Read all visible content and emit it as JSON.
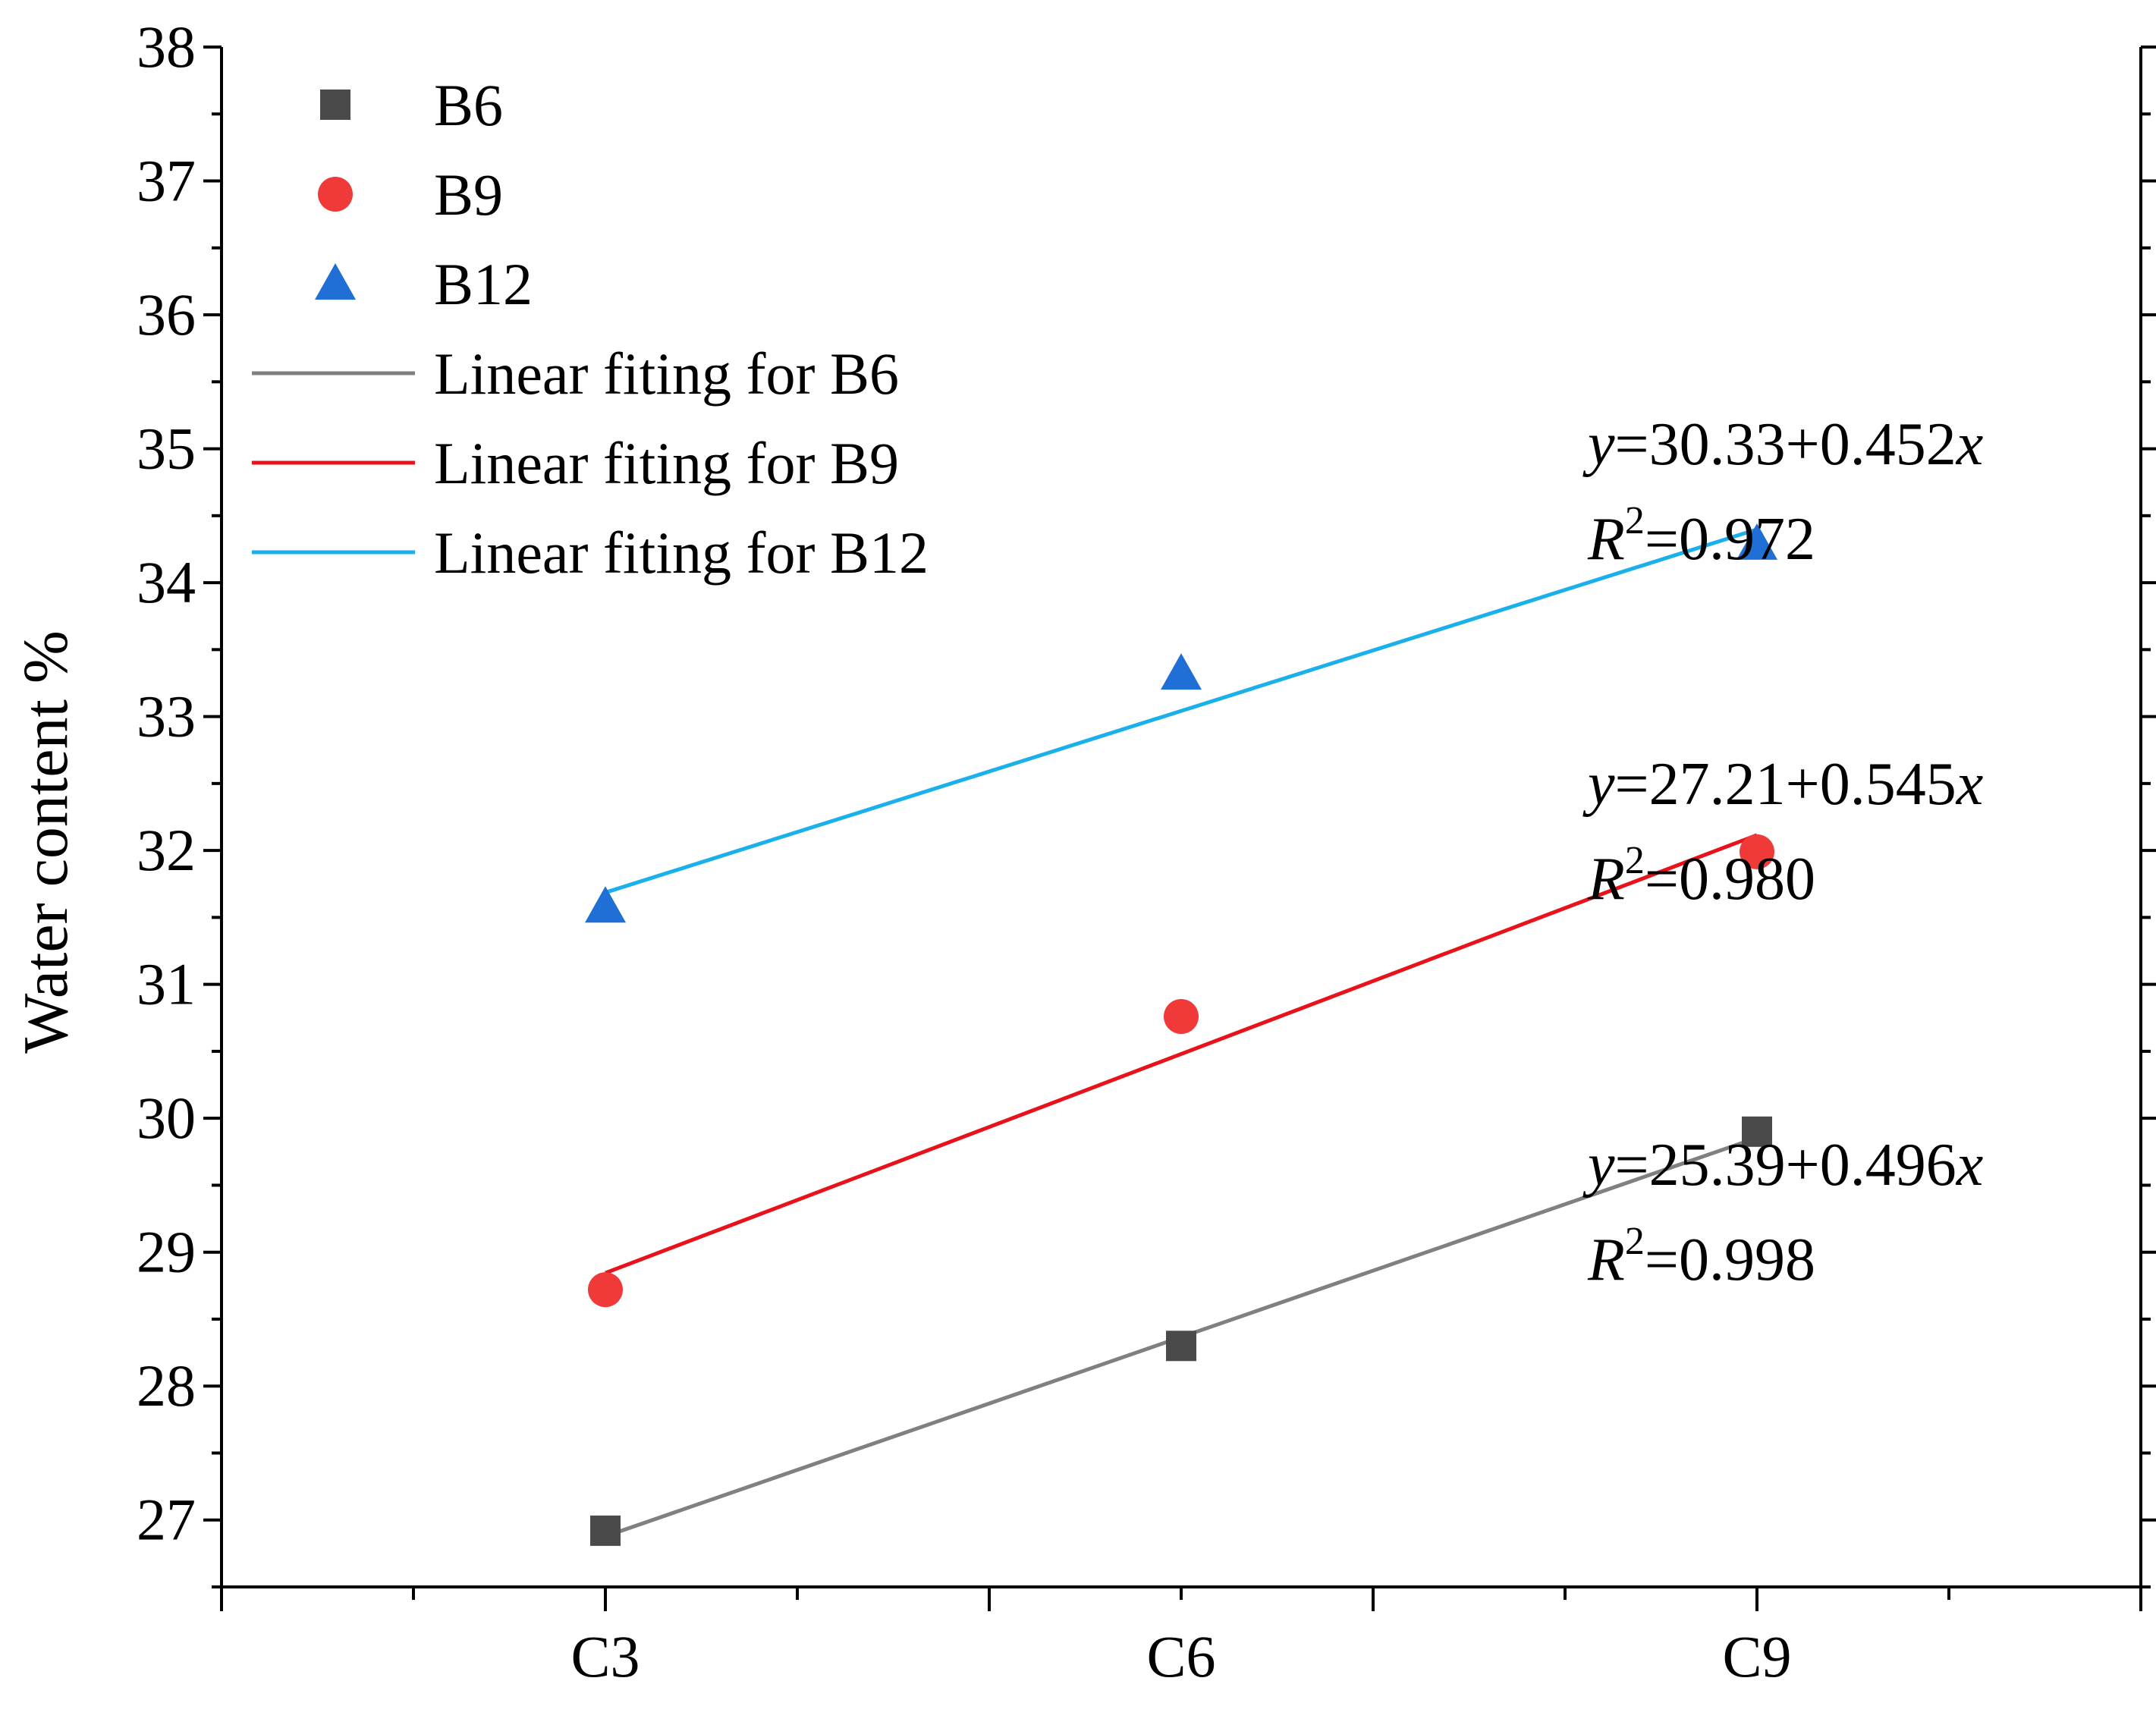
{
  "chart_data": {
    "type": "scatter",
    "title": "",
    "xlabel": "",
    "ylabel": "Water content %",
    "categories": [
      "C3",
      "C6",
      "C9"
    ],
    "xlim": [
      0,
      5
    ],
    "ylim": [
      26.5,
      38
    ],
    "yticks": [
      27,
      28,
      29,
      30,
      31,
      32,
      33,
      34,
      35,
      36,
      37,
      38
    ],
    "grid": false,
    "legend_position": "top-left",
    "series": [
      {
        "name": "B6",
        "marker": "square",
        "color": "#4a4a4a",
        "values": [
          26.92,
          28.3,
          29.9
        ],
        "fit_name": "Linear fiting for B6",
        "fit_color": "#808080",
        "fit_intercept": 25.39,
        "fit_slope": 0.496,
        "eq_y": "=25.39+0.496",
        "eq_r": "=0.998"
      },
      {
        "name": "B9",
        "marker": "circle",
        "color": "#f03a3a",
        "values": [
          28.72,
          30.76,
          31.99
        ],
        "fit_name": "Linear fiting for B9",
        "fit_color": "#e8131a",
        "fit_intercept": 27.21,
        "fit_slope": 0.545,
        "eq_y": "=27.21+0.545",
        "eq_r": "=0.980"
      },
      {
        "name": "B12",
        "marker": "triangle",
        "color": "#1f6fd6",
        "values": [
          31.58,
          33.32,
          34.29
        ],
        "fit_name": "Linear fiting for B12",
        "fit_color": "#1ab0ec",
        "fit_intercept": 30.33,
        "fit_slope": 0.452,
        "eq_y": "=30.33+0.452",
        "eq_r": "=0.972"
      }
    ],
    "eq_y_var": "y",
    "eq_x_var": "x",
    "eq_r_base": "R",
    "eq_r_sup": "2"
  }
}
